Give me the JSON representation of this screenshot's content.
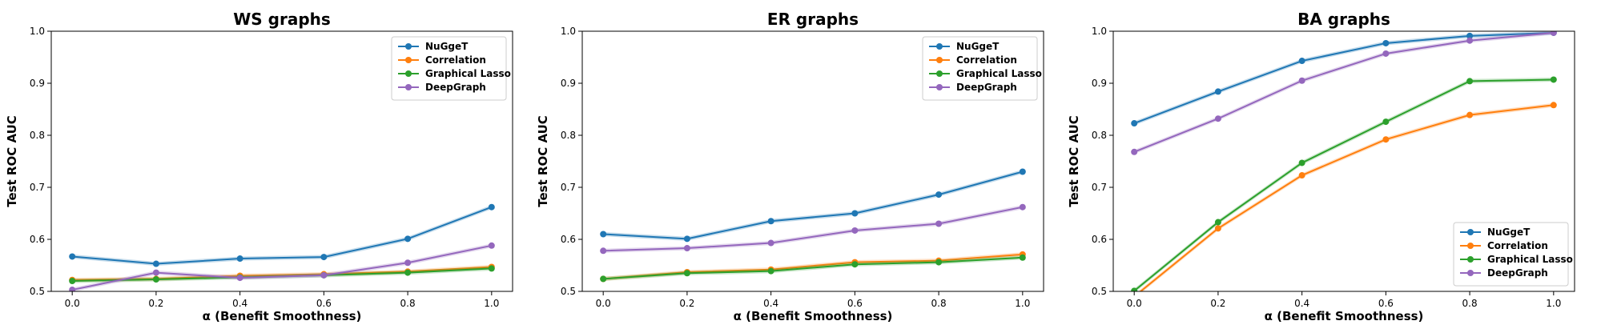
{
  "chart_data": [
    {
      "type": "line",
      "title": "WS graphs",
      "xlabel": "α (Benefit Smoothness)",
      "ylabel": "Test ROC AUC",
      "x": [
        0.0,
        0.2,
        0.4,
        0.6,
        0.8,
        1.0
      ],
      "xticks": [
        "0.0",
        "0.2",
        "0.4",
        "0.6",
        "0.8",
        "1.0"
      ],
      "ylim": [
        0.5,
        1.0
      ],
      "yticks": [
        "0.5",
        "0.6",
        "0.7",
        "0.8",
        "0.9",
        "1.0"
      ],
      "grid": false,
      "legend_position": "top-right",
      "series": [
        {
          "name": "NuGgeT",
          "color": "#1f77b4",
          "values": [
            0.567,
            0.553,
            0.563,
            0.566,
            0.601,
            0.662
          ]
        },
        {
          "name": "Correlation",
          "color": "#ff7f0e",
          "values": [
            0.522,
            0.524,
            0.53,
            0.533,
            0.538,
            0.547
          ]
        },
        {
          "name": "Graphical Lasso",
          "color": "#2ca02c",
          "values": [
            0.52,
            0.523,
            0.527,
            0.531,
            0.536,
            0.544
          ]
        },
        {
          "name": "DeepGraph",
          "color": "#9467bd",
          "values": [
            0.503,
            0.536,
            0.526,
            0.531,
            0.555,
            0.588
          ]
        }
      ]
    },
    {
      "type": "line",
      "title": "ER graphs",
      "xlabel": "α (Benefit Smoothness)",
      "ylabel": "Test ROC AUC",
      "x": [
        0.0,
        0.2,
        0.4,
        0.6,
        0.8,
        1.0
      ],
      "xticks": [
        "0.0",
        "0.2",
        "0.4",
        "0.6",
        "0.8",
        "1.0"
      ],
      "ylim": [
        0.5,
        1.0
      ],
      "yticks": [
        "0.5",
        "0.6",
        "0.7",
        "0.8",
        "0.9",
        "1.0"
      ],
      "grid": false,
      "legend_position": "top-right",
      "series": [
        {
          "name": "NuGgeT",
          "color": "#1f77b4",
          "values": [
            0.61,
            0.601,
            0.635,
            0.65,
            0.686,
            0.73
          ]
        },
        {
          "name": "Correlation",
          "color": "#ff7f0e",
          "values": [
            0.524,
            0.537,
            0.542,
            0.556,
            0.559,
            0.571
          ]
        },
        {
          "name": "Graphical Lasso",
          "color": "#2ca02c",
          "values": [
            0.524,
            0.535,
            0.539,
            0.552,
            0.556,
            0.565
          ]
        },
        {
          "name": "DeepGraph",
          "color": "#9467bd",
          "values": [
            0.578,
            0.583,
            0.593,
            0.617,
            0.63,
            0.662
          ]
        }
      ]
    },
    {
      "type": "line",
      "title": "BA graphs",
      "xlabel": "α (Benefit Smoothness)",
      "ylabel": "Test ROC AUC",
      "x": [
        0.0,
        0.2,
        0.4,
        0.6,
        0.8,
        1.0
      ],
      "xticks": [
        "0.0",
        "0.2",
        "0.4",
        "0.6",
        "0.8",
        "1.0"
      ],
      "ylim": [
        0.5,
        1.0
      ],
      "yticks": [
        "0.5",
        "0.6",
        "0.7",
        "0.8",
        "0.9",
        "1.0"
      ],
      "grid": false,
      "legend_position": "bottom-right",
      "series": [
        {
          "name": "NuGgeT",
          "color": "#1f77b4",
          "values": [
            0.823,
            0.884,
            0.943,
            0.977,
            0.991,
            0.997
          ]
        },
        {
          "name": "Correlation",
          "color": "#ff7f0e",
          "values": [
            0.49,
            0.621,
            0.723,
            0.792,
            0.839,
            0.858
          ]
        },
        {
          "name": "Graphical Lasso",
          "color": "#2ca02c",
          "values": [
            0.501,
            0.633,
            0.747,
            0.826,
            0.904,
            0.907
          ]
        },
        {
          "name": "DeepGraph",
          "color": "#9467bd",
          "values": [
            0.768,
            0.832,
            0.905,
            0.957,
            0.982,
            0.997
          ]
        }
      ]
    }
  ]
}
